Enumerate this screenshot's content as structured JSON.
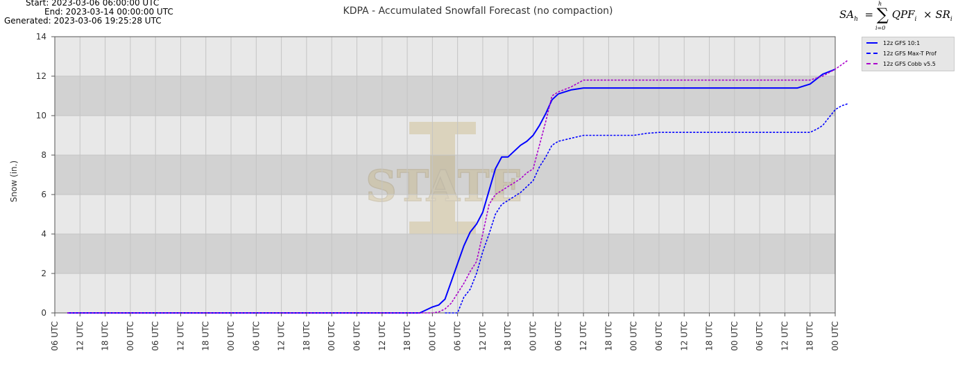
{
  "header": {
    "start": "Start: 2023-03-06 06:00:00 UTC",
    "end": "End: 2023-03-14 00:00:00 UTC",
    "generated": "Generated: 2023-03-06 19:25:28 UTC"
  },
  "formula": {
    "lhs": "SA",
    "lhs_sub": "h",
    "upper": "h",
    "lower": "i=0",
    "term1": "QPF",
    "term1_sub": "i",
    "term2": "SR",
    "term2_sub": "i"
  },
  "watermark": {
    "text": "STATE",
    "letter": "I"
  },
  "chart_data": {
    "type": "line",
    "title": "KDPA - Accumulated Snowfall Forecast (no compaction)",
    "ylabel": "Snow (in.)",
    "xlabel": "",
    "ylim": [
      0,
      14
    ],
    "yticks": [
      0,
      2,
      4,
      6,
      8,
      10,
      12,
      14
    ],
    "xlim": [
      0,
      31
    ],
    "xticks": [
      {
        "x": 0,
        "label": "06 UTC"
      },
      {
        "x": 1,
        "label": "12 UTC"
      },
      {
        "x": 2,
        "label": "18 UTC"
      },
      {
        "x": 3,
        "label": "00 UTC"
      },
      {
        "x": 4,
        "label": "06 UTC"
      },
      {
        "x": 5,
        "label": "12 UTC"
      },
      {
        "x": 6,
        "label": "18 UTC"
      },
      {
        "x": 7,
        "label": "00 UTC"
      },
      {
        "x": 8,
        "label": "06 UTC"
      },
      {
        "x": 9,
        "label": "12 UTC"
      },
      {
        "x": 10,
        "label": "18 UTC"
      },
      {
        "x": 11,
        "label": "00 UTC"
      },
      {
        "x": 12,
        "label": "06 UTC"
      },
      {
        "x": 13,
        "label": "12 UTC"
      },
      {
        "x": 14,
        "label": "18 UTC"
      },
      {
        "x": 15,
        "label": "00 UTC"
      },
      {
        "x": 16,
        "label": "06 UTC"
      },
      {
        "x": 17,
        "label": "12 UTC"
      },
      {
        "x": 18,
        "label": "18 UTC"
      },
      {
        "x": 19,
        "label": "00 UTC"
      },
      {
        "x": 20,
        "label": "06 UTC"
      },
      {
        "x": 21,
        "label": "12 UTC"
      },
      {
        "x": 22,
        "label": "18 UTC"
      },
      {
        "x": 23,
        "label": "00 UTC"
      },
      {
        "x": 24,
        "label": "06 UTC"
      },
      {
        "x": 25,
        "label": "12 UTC"
      },
      {
        "x": 26,
        "label": "18 UTC"
      },
      {
        "x": 27,
        "label": "00 UTC"
      },
      {
        "x": 28,
        "label": "06 UTC"
      },
      {
        "x": 29,
        "label": "12 UTC"
      },
      {
        "x": 30,
        "label": "18 UTC"
      },
      {
        "x": 31,
        "label": "00 UTC"
      }
    ],
    "grid": true,
    "legend_position": "outside-right",
    "series": [
      {
        "name": "12z GFS 10:1",
        "color": "#0000ff",
        "dash": "solid",
        "points": [
          [
            0.5,
            0
          ],
          [
            14.5,
            0
          ],
          [
            15,
            0.3
          ],
          [
            15.25,
            0.4
          ],
          [
            15.5,
            0.7
          ],
          [
            15.75,
            1.6
          ],
          [
            16,
            2.5
          ],
          [
            16.25,
            3.4
          ],
          [
            16.5,
            4.1
          ],
          [
            16.75,
            4.5
          ],
          [
            17,
            5.1
          ],
          [
            17.25,
            6.2
          ],
          [
            17.5,
            7.3
          ],
          [
            17.75,
            7.9
          ],
          [
            18,
            7.9
          ],
          [
            18.25,
            8.2
          ],
          [
            18.5,
            8.5
          ],
          [
            18.75,
            8.7
          ],
          [
            19,
            9.0
          ],
          [
            19.25,
            9.5
          ],
          [
            19.5,
            10.1
          ],
          [
            19.75,
            10.8
          ],
          [
            20,
            11.1
          ],
          [
            20.5,
            11.3
          ],
          [
            21,
            11.4
          ],
          [
            29.5,
            11.4
          ],
          [
            30,
            11.6
          ],
          [
            30.25,
            11.85
          ],
          [
            30.5,
            12.1
          ],
          [
            31,
            12.35
          ]
        ]
      },
      {
        "name": "12z GFS Max-T Prof",
        "color": "#0000ff",
        "dash": "dash",
        "points": [
          [
            15.5,
            0
          ],
          [
            16,
            0
          ],
          [
            16.25,
            0.8
          ],
          [
            16.5,
            1.2
          ],
          [
            16.75,
            2.0
          ],
          [
            17,
            3.1
          ],
          [
            17.25,
            4.0
          ],
          [
            17.5,
            5.0
          ],
          [
            17.75,
            5.5
          ],
          [
            18,
            5.7
          ],
          [
            18.25,
            5.9
          ],
          [
            18.5,
            6.1
          ],
          [
            18.75,
            6.4
          ],
          [
            19,
            6.7
          ],
          [
            19.25,
            7.4
          ],
          [
            19.5,
            7.9
          ],
          [
            19.75,
            8.5
          ],
          [
            20,
            8.7
          ],
          [
            20.5,
            8.85
          ],
          [
            21,
            9.0
          ],
          [
            23,
            9.0
          ],
          [
            23.25,
            9.05
          ],
          [
            23.5,
            9.1
          ],
          [
            24,
            9.15
          ],
          [
            30,
            9.15
          ],
          [
            30.25,
            9.3
          ],
          [
            30.5,
            9.5
          ],
          [
            30.75,
            9.9
          ],
          [
            31,
            10.3
          ],
          [
            31.25,
            10.5
          ],
          [
            31.5,
            10.6
          ]
        ]
      },
      {
        "name": "12z GFS Cobb v5.5",
        "color": "#aa00cc",
        "dash": "dash",
        "points": [
          [
            0.5,
            0
          ],
          [
            15,
            0
          ],
          [
            15.25,
            0.05
          ],
          [
            15.5,
            0.2
          ],
          [
            15.75,
            0.5
          ],
          [
            16,
            1.0
          ],
          [
            16.25,
            1.5
          ],
          [
            16.5,
            2.1
          ],
          [
            16.75,
            2.6
          ],
          [
            17,
            4.0
          ],
          [
            17.25,
            5.5
          ],
          [
            17.5,
            6.0
          ],
          [
            17.75,
            6.2
          ],
          [
            18,
            6.4
          ],
          [
            18.25,
            6.6
          ],
          [
            18.5,
            6.8
          ],
          [
            18.75,
            7.1
          ],
          [
            19,
            7.3
          ],
          [
            19.25,
            8.5
          ],
          [
            19.5,
            9.7
          ],
          [
            19.75,
            11.0
          ],
          [
            20,
            11.2
          ],
          [
            20.5,
            11.45
          ],
          [
            21,
            11.8
          ],
          [
            30,
            11.8
          ],
          [
            30.5,
            12.0
          ],
          [
            31,
            12.35
          ],
          [
            31.5,
            12.8
          ]
        ]
      }
    ]
  }
}
